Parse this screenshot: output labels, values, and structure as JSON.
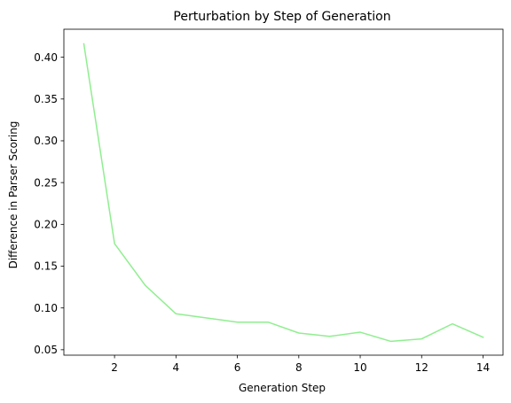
{
  "chart_data": {
    "type": "line",
    "title": "Perturbation by Step of Generation",
    "xlabel": "Generation Step",
    "ylabel": "Difference in Parser Scoring",
    "xlim": [
      0.35,
      14.65
    ],
    "ylim": [
      0.0435,
      0.4335
    ],
    "xticks": [
      2,
      4,
      6,
      8,
      10,
      12,
      14
    ],
    "xtick_labels": [
      "2",
      "4",
      "6",
      "8",
      "10",
      "12",
      "14"
    ],
    "yticks": [
      0.05,
      0.1,
      0.15,
      0.2,
      0.25,
      0.3,
      0.35,
      0.4
    ],
    "ytick_labels": [
      "0.05",
      "0.10",
      "0.15",
      "0.20",
      "0.25",
      "0.30",
      "0.35",
      "0.40"
    ],
    "grid": false,
    "series": [
      {
        "color": "#90ee90",
        "x": [
          1,
          2,
          3,
          4,
          5,
          6,
          7,
          8,
          9,
          10,
          11,
          12,
          13,
          14
        ],
        "y": [
          0.416,
          0.177,
          0.127,
          0.093,
          0.088,
          0.083,
          0.083,
          0.07,
          0.066,
          0.071,
          0.06,
          0.063,
          0.081,
          0.065
        ]
      }
    ]
  }
}
